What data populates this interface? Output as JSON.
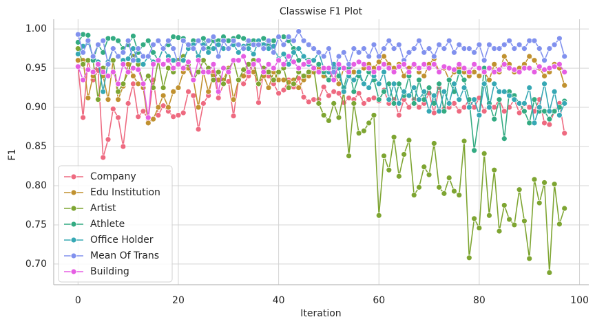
{
  "chart_data": {
    "type": "line",
    "title": "Classwise F1 Plot",
    "x_label": "Iteration",
    "y_label": "F1",
    "x": [
      0,
      1,
      2,
      3,
      4,
      5,
      6,
      7,
      8,
      9,
      10,
      11,
      12,
      13,
      14,
      15,
      16,
      17,
      18,
      19,
      20,
      21,
      22,
      23,
      24,
      25,
      26,
      27,
      28,
      29,
      30,
      31,
      32,
      33,
      34,
      35,
      36,
      37,
      38,
      39,
      40,
      41,
      42,
      43,
      44,
      45,
      46,
      47,
      48,
      49,
      50,
      51,
      52,
      53,
      54,
      55,
      56,
      57,
      58,
      59,
      60,
      61,
      62,
      63,
      64,
      65,
      66,
      67,
      68,
      69,
      70,
      71,
      72,
      73,
      74,
      75,
      76,
      77,
      78,
      79,
      80,
      81,
      82,
      83,
      84,
      85,
      86,
      87,
      88,
      89,
      90,
      91,
      92,
      93,
      94,
      95,
      96,
      97
    ],
    "xlim": [
      -4.85,
      101.85
    ],
    "xticks": [
      0,
      20,
      40,
      60,
      80,
      100
    ],
    "ylim": [
      0.6736,
      1.0124
    ],
    "yticks": [
      {
        "value": 0.7,
        "label": "0.70"
      },
      0.75,
      {
        "value": 0.8,
        "label": "0.80"
      },
      0.85,
      {
        "value": 0.9,
        "label": "0.90"
      },
      0.95,
      {
        "value": 1.0,
        "label": "1.00"
      }
    ],
    "grid": true,
    "legend": "lower left",
    "series": [
      {
        "name": "Company",
        "color": "#ee6a80",
        "values": [
          0.952,
          0.887,
          0.96,
          0.935,
          0.947,
          0.836,
          0.859,
          0.898,
          0.887,
          0.85,
          0.905,
          0.93,
          0.888,
          0.895,
          0.885,
          0.935,
          0.89,
          0.902,
          0.895,
          0.888,
          0.89,
          0.893,
          0.92,
          0.915,
          0.872,
          0.905,
          0.915,
          0.945,
          0.912,
          0.93,
          0.933,
          0.889,
          0.935,
          0.93,
          0.94,
          0.96,
          0.906,
          0.945,
          0.94,
          0.93,
          0.918,
          0.922,
          0.935,
          0.926,
          0.937,
          0.913,
          0.907,
          0.91,
          0.91,
          0.926,
          0.915,
          0.92,
          0.918,
          0.906,
          0.912,
          0.91,
          0.918,
          0.905,
          0.91,
          0.912,
          0.908,
          0.922,
          0.905,
          0.91,
          0.89,
          0.91,
          0.9,
          0.91,
          0.9,
          0.905,
          0.918,
          0.893,
          0.925,
          0.898,
          0.9,
          0.905,
          0.895,
          0.9,
          0.91,
          0.9,
          0.912,
          0.895,
          0.905,
          0.9,
          0.91,
          0.895,
          0.9,
          0.91,
          0.893,
          0.905,
          0.9,
          0.895,
          0.91,
          0.88,
          0.878,
          0.895,
          0.905,
          0.867
        ]
      },
      {
        "name": "Edu Institution",
        "color": "#c0912f",
        "values": [
          0.96,
          0.96,
          0.912,
          0.94,
          0.955,
          0.94,
          0.91,
          0.96,
          0.91,
          0.927,
          0.955,
          0.94,
          0.93,
          0.925,
          0.88,
          0.885,
          0.9,
          0.915,
          0.9,
          0.92,
          0.925,
          0.945,
          0.95,
          0.935,
          0.9,
          0.945,
          0.92,
          0.94,
          0.935,
          0.935,
          0.95,
          0.91,
          0.935,
          0.94,
          0.955,
          0.945,
          0.93,
          0.94,
          0.925,
          0.945,
          0.935,
          0.935,
          0.932,
          0.935,
          0.925,
          0.935,
          0.94,
          0.945,
          0.95,
          0.94,
          0.935,
          0.945,
          0.93,
          0.95,
          0.94,
          0.945,
          0.945,
          0.95,
          0.955,
          0.95,
          0.958,
          0.965,
          0.955,
          0.95,
          0.955,
          0.94,
          0.95,
          0.955,
          0.945,
          0.94,
          0.955,
          0.962,
          0.945,
          0.95,
          0.935,
          0.945,
          0.95,
          0.945,
          0.94,
          0.945,
          0.94,
          0.945,
          0.935,
          0.955,
          0.945,
          0.965,
          0.955,
          0.945,
          0.95,
          0.955,
          0.965,
          0.96,
          0.95,
          0.94,
          0.945,
          0.955,
          0.95,
          0.928
        ]
      },
      {
        "name": "Artist",
        "color": "#7ea532",
        "values": [
          0.975,
          0.955,
          0.96,
          0.96,
          0.91,
          0.95,
          0.955,
          0.96,
          0.92,
          0.93,
          0.945,
          0.965,
          0.955,
          0.93,
          0.94,
          0.925,
          0.96,
          0.925,
          0.95,
          0.945,
          0.96,
          0.965,
          0.955,
          0.935,
          0.945,
          0.96,
          0.95,
          0.935,
          0.945,
          0.93,
          0.948,
          0.96,
          0.935,
          0.948,
          0.955,
          0.96,
          0.93,
          0.95,
          0.945,
          0.935,
          0.945,
          0.95,
          0.925,
          0.93,
          0.945,
          0.94,
          0.945,
          0.95,
          0.905,
          0.89,
          0.883,
          0.905,
          0.887,
          0.92,
          0.838,
          0.905,
          0.867,
          0.87,
          0.88,
          0.89,
          0.762,
          0.838,
          0.82,
          0.862,
          0.812,
          0.84,
          0.858,
          0.788,
          0.798,
          0.824,
          0.814,
          0.854,
          0.798,
          0.79,
          0.81,
          0.793,
          0.788,
          0.857,
          0.708,
          0.758,
          0.746,
          0.841,
          0.762,
          0.82,
          0.742,
          0.775,
          0.757,
          0.75,
          0.795,
          0.755,
          0.707,
          0.808,
          0.778,
          0.804,
          0.689,
          0.802,
          0.751,
          0.771
        ]
      },
      {
        "name": "Athlete",
        "color": "#33ab82",
        "values": [
          0.983,
          0.993,
          0.992,
          0.96,
          0.98,
          0.97,
          0.988,
          0.988,
          0.985,
          0.975,
          0.98,
          0.991,
          0.97,
          0.98,
          0.985,
          0.97,
          0.96,
          0.975,
          0.98,
          0.99,
          0.989,
          0.988,
          0.975,
          0.985,
          0.96,
          0.988,
          0.975,
          0.985,
          0.985,
          0.99,
          0.985,
          0.988,
          0.99,
          0.988,
          0.98,
          0.985,
          0.985,
          0.988,
          0.98,
          0.985,
          0.99,
          0.99,
          0.985,
          0.975,
          0.96,
          0.965,
          0.96,
          0.95,
          0.955,
          0.945,
          0.935,
          0.95,
          0.94,
          0.925,
          0.95,
          0.92,
          0.94,
          0.93,
          0.945,
          0.935,
          0.91,
          0.92,
          0.93,
          0.905,
          0.93,
          0.915,
          0.94,
          0.905,
          0.935,
          0.91,
          0.925,
          0.905,
          0.93,
          0.895,
          0.935,
          0.92,
          0.945,
          0.935,
          0.91,
          0.845,
          0.89,
          0.95,
          0.905,
          0.885,
          0.91,
          0.86,
          0.92,
          0.915,
          0.905,
          0.895,
          0.88,
          0.91,
          0.895,
          0.895,
          0.885,
          0.895,
          0.9,
          0.908
        ]
      },
      {
        "name": "Office Holder",
        "color": "#36a8b4",
        "values": [
          0.968,
          0.978,
          0.983,
          0.965,
          0.958,
          0.92,
          0.958,
          0.975,
          0.965,
          0.96,
          0.962,
          0.975,
          0.96,
          0.955,
          0.965,
          0.958,
          0.96,
          0.975,
          0.965,
          0.96,
          0.955,
          0.96,
          0.975,
          0.98,
          0.965,
          0.98,
          0.97,
          0.975,
          0.98,
          0.975,
          0.975,
          0.98,
          0.97,
          0.978,
          0.975,
          0.968,
          0.985,
          0.98,
          0.975,
          0.978,
          0.962,
          0.968,
          0.955,
          0.97,
          0.975,
          0.965,
          0.955,
          0.96,
          0.97,
          0.95,
          0.945,
          0.955,
          0.95,
          0.92,
          0.94,
          0.935,
          0.945,
          0.93,
          0.925,
          0.94,
          0.93,
          0.945,
          0.91,
          0.93,
          0.905,
          0.92,
          0.915,
          0.925,
          0.91,
          0.92,
          0.895,
          0.915,
          0.895,
          0.92,
          0.905,
          0.93,
          0.91,
          0.925,
          0.9,
          0.91,
          0.89,
          0.93,
          0.9,
          0.93,
          0.92,
          0.92,
          0.915,
          0.91,
          0.905,
          0.905,
          0.925,
          0.88,
          0.9,
          0.93,
          0.895,
          0.92,
          0.89,
          0.905
        ]
      },
      {
        "name": "Mean Of Trans",
        "color": "#8191ee",
        "values": [
          0.993,
          0.97,
          0.985,
          0.965,
          0.98,
          0.985,
          0.955,
          0.975,
          0.965,
          0.97,
          0.985,
          0.96,
          0.975,
          0.965,
          0.965,
          0.98,
          0.985,
          0.975,
          0.985,
          0.975,
          0.955,
          0.985,
          0.98,
          0.975,
          0.985,
          0.975,
          0.985,
          0.99,
          0.965,
          0.985,
          0.975,
          0.985,
          0.98,
          0.975,
          0.985,
          0.98,
          0.98,
          0.975,
          0.985,
          0.97,
          0.99,
          0.98,
          0.99,
          0.985,
          0.997,
          0.985,
          0.98,
          0.975,
          0.97,
          0.965,
          0.975,
          0.945,
          0.965,
          0.97,
          0.955,
          0.975,
          0.97,
          0.975,
          0.965,
          0.98,
          0.965,
          0.975,
          0.985,
          0.975,
          0.98,
          0.96,
          0.97,
          0.975,
          0.985,
          0.97,
          0.975,
          0.965,
          0.98,
          0.975,
          0.985,
          0.97,
          0.98,
          0.975,
          0.975,
          0.97,
          0.98,
          0.96,
          0.98,
          0.975,
          0.975,
          0.98,
          0.985,
          0.975,
          0.98,
          0.975,
          0.985,
          0.985,
          0.975,
          0.96,
          0.975,
          0.98,
          0.988,
          0.965
        ]
      },
      {
        "name": "Building",
        "color": "#e55ee3",
        "values": [
          0.952,
          0.935,
          0.948,
          0.945,
          0.955,
          0.945,
          0.94,
          0.945,
          0.93,
          0.955,
          0.945,
          0.95,
          0.948,
          0.93,
          0.887,
          0.955,
          0.96,
          0.955,
          0.96,
          0.95,
          0.955,
          0.95,
          0.958,
          0.935,
          0.96,
          0.945,
          0.945,
          0.955,
          0.92,
          0.95,
          0.945,
          0.96,
          0.96,
          0.965,
          0.945,
          0.955,
          0.96,
          0.945,
          0.955,
          0.95,
          0.96,
          0.955,
          0.965,
          0.958,
          0.95,
          0.955,
          0.958,
          0.95,
          0.945,
          0.95,
          0.95,
          0.935,
          0.955,
          0.95,
          0.945,
          0.955,
          0.958,
          0.955,
          0.95,
          0.945,
          0.95,
          0.955,
          0.95,
          0.945,
          0.952,
          0.955,
          0.945,
          0.955,
          0.95,
          0.955,
          0.95,
          0.955,
          0.945,
          0.952,
          0.95,
          0.948,
          0.955,
          0.95,
          0.945,
          0.955,
          0.95,
          0.945,
          0.95,
          0.945,
          0.948,
          0.955,
          0.95,
          0.948,
          0.945,
          0.95,
          0.95,
          0.945,
          0.952,
          0.948,
          0.95,
          0.952,
          0.955,
          0.945
        ]
      }
    ]
  }
}
